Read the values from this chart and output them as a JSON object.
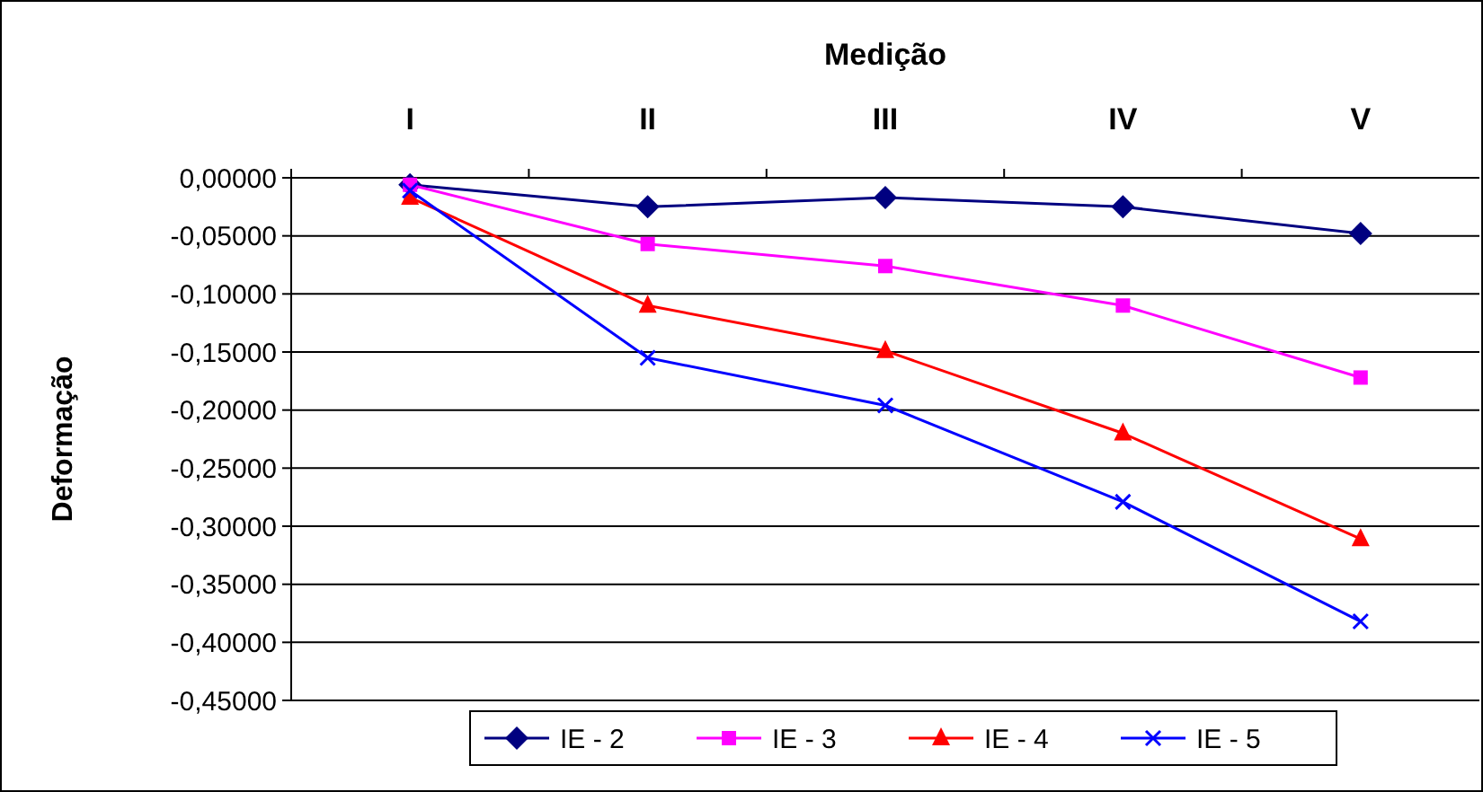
{
  "chart_data": {
    "type": "line",
    "xlabel": "Medição",
    "ylabel": "Deformação",
    "categories": [
      "I",
      "II",
      "III",
      "IV",
      "V"
    ],
    "series": [
      {
        "name": "IE - 2",
        "color": "#000080",
        "marker": "diamond",
        "values": [
          -0.006,
          -0.025,
          -0.017,
          -0.025,
          -0.048
        ]
      },
      {
        "name": "IE - 3",
        "color": "#ff00ff",
        "marker": "square",
        "values": [
          -0.006,
          -0.057,
          -0.076,
          -0.11,
          -0.172
        ]
      },
      {
        "name": "IE - 4",
        "color": "#ff0000",
        "marker": "triangle",
        "values": [
          -0.017,
          -0.11,
          -0.149,
          -0.22,
          -0.311
        ]
      },
      {
        "name": "IE - 5",
        "color": "#0000ff",
        "marker": "cross",
        "values": [
          -0.011,
          -0.155,
          -0.196,
          -0.279,
          -0.382
        ]
      }
    ],
    "ylim": [
      -0.45,
      0
    ],
    "yticks": [
      {
        "value": 0,
        "label": "0,00000"
      },
      {
        "value": -0.05,
        "label": "-0,05000"
      },
      {
        "value": -0.1,
        "label": "-0,10000"
      },
      {
        "value": -0.15,
        "label": "-0,15000"
      },
      {
        "value": -0.2,
        "label": "-0,20000"
      },
      {
        "value": -0.25,
        "label": "-0,25000"
      },
      {
        "value": -0.3,
        "label": "-0,30000"
      },
      {
        "value": -0.35,
        "label": "-0,35000"
      },
      {
        "value": -0.4,
        "label": "-0,40000"
      },
      {
        "value": -0.45,
        "label": "-0,45000"
      }
    ],
    "grid": "y",
    "legend": "bottom"
  }
}
